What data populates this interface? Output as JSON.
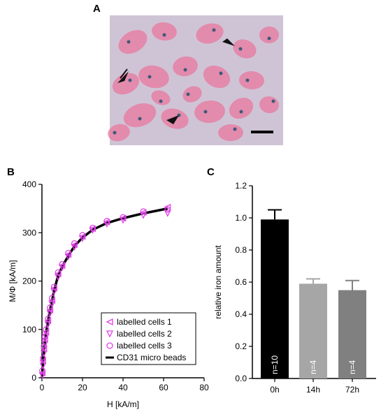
{
  "panel_labels": {
    "a": "A",
    "b": "B",
    "c": "C"
  },
  "colors": {
    "magenta": "#e040e8",
    "fit_line": "#000000",
    "bar_0h": "#000000",
    "bar_14h": "#a6a6a6",
    "bar_72h": "#808080",
    "micrograph_bg": "#cfc4d6",
    "cell_pink": "#e8789e",
    "iron_blue": "#3f5a7a"
  },
  "micrograph": {
    "description_icons": [
      "arrowhead-icon",
      "arrowhead-icon",
      "arrowhead-icon"
    ],
    "scale_bar": true
  },
  "chart_data": [
    {
      "panel": "B",
      "type": "scatter",
      "xlabel": "H [kA/m]",
      "ylabel": "M/Φ [kA/m]",
      "xlim": [
        0,
        80
      ],
      "ylim": [
        0,
        400
      ],
      "xticks": [
        0,
        20,
        40,
        60,
        80
      ],
      "yticks": [
        0,
        100,
        200,
        300,
        400
      ],
      "grid": false,
      "legend_position": "lower-right",
      "series": [
        {
          "name": "labelled cells 1",
          "marker": "triangle-left",
          "x": [
            0.2,
            0.5,
            1,
            1.5,
            2,
            3,
            4,
            5,
            6,
            8,
            10,
            13,
            16,
            20,
            25,
            32,
            40,
            50,
            62
          ],
          "y": [
            10,
            35,
            60,
            80,
            95,
            118,
            140,
            160,
            185,
            215,
            232,
            255,
            275,
            292,
            308,
            322,
            330,
            342,
            353
          ]
        },
        {
          "name": "labelled cells 2",
          "marker": "triangle-down",
          "x": [
            0.2,
            0.5,
            1,
            1.5,
            2,
            3,
            4,
            5,
            6,
            8,
            10,
            13,
            16,
            20,
            25,
            32,
            40,
            50,
            62
          ],
          "y": [
            5,
            25,
            50,
            70,
            85,
            110,
            133,
            152,
            178,
            208,
            228,
            250,
            270,
            288,
            305,
            318,
            326,
            336,
            340
          ]
        },
        {
          "name": "labelled cells 3",
          "marker": "circle",
          "x": [
            0.2,
            0.5,
            1,
            1.5,
            2,
            3,
            4,
            5,
            6,
            8,
            10,
            13,
            16,
            20,
            25,
            32,
            40,
            50,
            62
          ],
          "y": [
            15,
            40,
            65,
            85,
            100,
            122,
            145,
            165,
            188,
            218,
            235,
            258,
            278,
            295,
            310,
            324,
            332,
            344,
            348
          ]
        },
        {
          "name": "CD31 micro beads",
          "marker": "line",
          "x": [
            0,
            0.5,
            1,
            2,
            3,
            4,
            5,
            6,
            8,
            10,
            13,
            16,
            20,
            25,
            32,
            40,
            50,
            62
          ],
          "y": [
            0,
            30,
            58,
            92,
            118,
            140,
            160,
            180,
            212,
            230,
            252,
            272,
            290,
            306,
            320,
            330,
            340,
            350
          ]
        }
      ]
    },
    {
      "panel": "C",
      "type": "bar",
      "ylabel": "relative iron amount",
      "ylim": [
        0,
        1.2
      ],
      "yticks": [
        "0.0",
        "0.2",
        "0.4",
        "0.6",
        "0.8",
        "1.0",
        "1.2"
      ],
      "categories": [
        "0h",
        "14h",
        "72h"
      ],
      "values": [
        0.99,
        0.59,
        0.55
      ],
      "errors": [
        0.06,
        0.03,
        0.06
      ],
      "bar_labels": [
        "n=10",
        "n=4",
        "n=4"
      ]
    }
  ]
}
